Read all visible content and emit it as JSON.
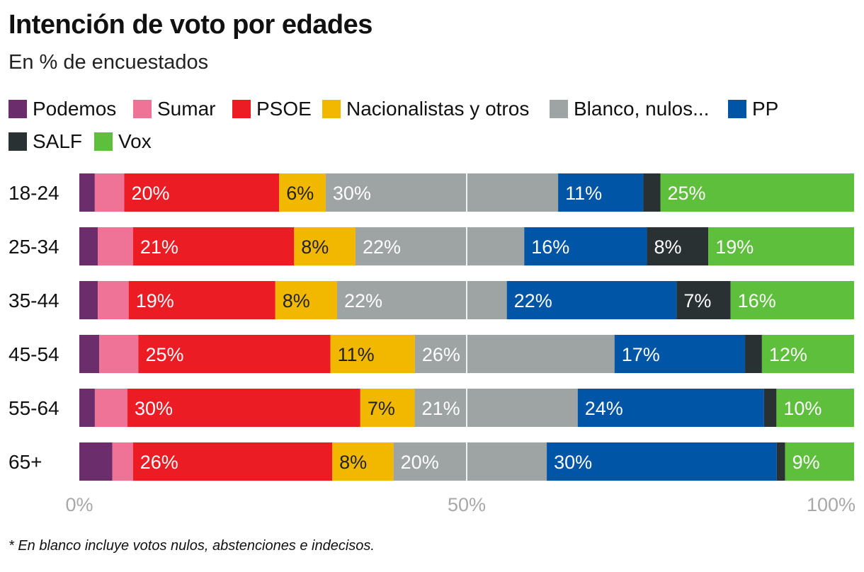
{
  "title": "Intención de voto por edades",
  "subtitle": "En % de encuestados",
  "footnote": "* En blanco incluye votos nulos, abstenciones e indecisos.",
  "legend": [
    {
      "label": "Podemos",
      "color": "#6b2d6b"
    },
    {
      "label": "Sumar",
      "color": "#ee7396"
    },
    {
      "label": "PSOE",
      "color": "#ec1c24"
    },
    {
      "label": "Nacionalistas y otros",
      "color": "#f2b800"
    },
    {
      "label": "Blanco, nulos...",
      "color": "#9ea3a3"
    },
    {
      "label": "PP",
      "color": "#0055a6"
    },
    {
      "label": "SALF",
      "color": "#2a3132"
    },
    {
      "label": "Vox",
      "color": "#5dbf3b"
    }
  ],
  "chart_data": {
    "type": "bar",
    "orientation": "horizontal-stacked",
    "categories": [
      "18-24",
      "25-34",
      "35-44",
      "45-54",
      "55-64",
      "65+"
    ],
    "xlim": [
      0,
      100
    ],
    "x_ticks": [
      "0%",
      "50%",
      "100%"
    ],
    "grid": true,
    "series": [
      {
        "name": "Podemos",
        "color": "#6b2d6b",
        "text_color": "#ffffff",
        "values": [
          2,
          2.4,
          2.4,
          2.6,
          2,
          4.3
        ],
        "labels": [
          "",
          "",
          "",
          "",
          "",
          ""
        ]
      },
      {
        "name": "Sumar",
        "color": "#ee7396",
        "text_color": "#ffffff",
        "values": [
          3.8,
          4.6,
          4,
          5.1,
          4.2,
          2.7
        ],
        "labels": [
          "",
          "",
          "",
          "",
          "",
          ""
        ]
      },
      {
        "name": "PSOE",
        "color": "#ec1c24",
        "text_color": "#ffffff",
        "values": [
          20,
          21,
          19,
          25,
          30,
          26
        ],
        "labels": [
          "20%",
          "21%",
          "19%",
          "25%",
          "30%",
          "26%"
        ]
      },
      {
        "name": "Nacionalistas y otros",
        "color": "#f2b800",
        "text_color": "#222222",
        "values": [
          6,
          8,
          8,
          11,
          7,
          8
        ],
        "labels": [
          "6%",
          "8%",
          "8%",
          "11%",
          "7%",
          "8%"
        ]
      },
      {
        "name": "Blanco, nulos...",
        "color": "#9ea3a3",
        "text_color": "#ffffff",
        "values": [
          30,
          22,
          22,
          26,
          21,
          20
        ],
        "labels": [
          "30%",
          "22%",
          "22%",
          "26%",
          "21%",
          "20%"
        ]
      },
      {
        "name": "PP",
        "color": "#0055a6",
        "text_color": "#ffffff",
        "values": [
          11,
          16,
          22,
          17,
          24,
          30
        ],
        "labels": [
          "11%",
          "16%",
          "22%",
          "17%",
          "24%",
          "30%"
        ]
      },
      {
        "name": "SALF",
        "color": "#2a3132",
        "text_color": "#ffffff",
        "values": [
          2.2,
          8,
          7,
          2.2,
          1.6,
          1.1
        ],
        "labels": [
          "",
          "8%",
          "7%",
          "",
          "",
          ""
        ]
      },
      {
        "name": "Vox",
        "color": "#5dbf3b",
        "text_color": "#ffffff",
        "values": [
          25,
          19,
          16,
          12,
          10,
          9
        ],
        "labels": [
          "25%",
          "19%",
          "16%",
          "12%",
          "10%",
          "9%"
        ]
      }
    ]
  }
}
